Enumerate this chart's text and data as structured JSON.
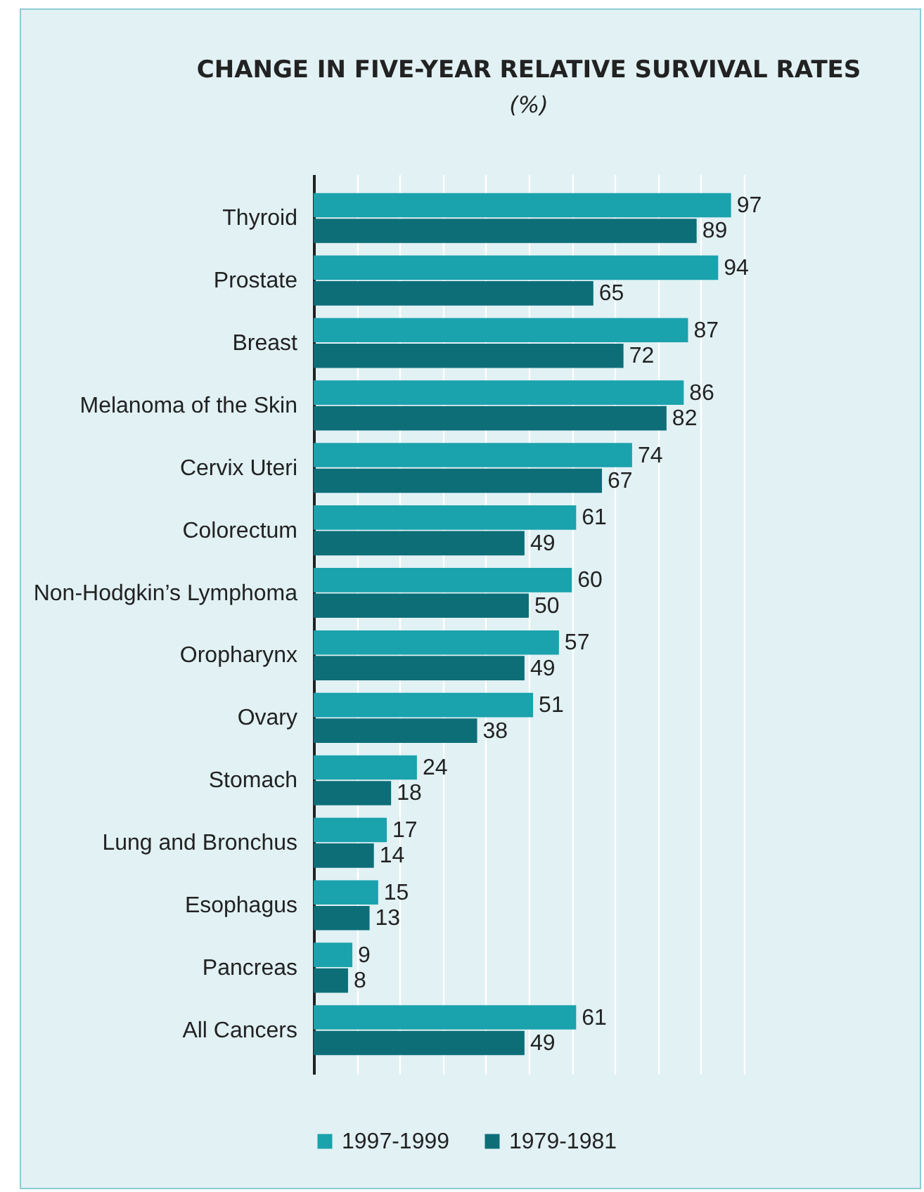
{
  "chart_data": {
    "type": "bar",
    "orientation": "horizontal",
    "title": "CHANGE IN FIVE-YEAR RELATIVE SURVIVAL RATES",
    "subtitle": "(%)",
    "categories": [
      "Thyroid",
      "Prostate",
      "Breast",
      "Melanoma of the Skin",
      "Cervix Uteri",
      "Colorectum",
      "Non-Hodgkin’s Lymphoma",
      "Oropharynx",
      "Ovary",
      "Stomach",
      "Lung and Bronchus",
      "Esophagus",
      "Pancreas",
      "All Cancers"
    ],
    "series": [
      {
        "name": "1997-1999",
        "color": "#1aa2ad",
        "values": [
          97,
          94,
          87,
          86,
          74,
          61,
          60,
          57,
          51,
          24,
          17,
          15,
          9,
          61
        ]
      },
      {
        "name": "1979-1981",
        "color": "#0d6e78",
        "values": [
          89,
          65,
          72,
          82,
          67,
          49,
          50,
          49,
          38,
          18,
          14,
          13,
          8,
          49
        ]
      }
    ],
    "xlim": [
      0,
      100
    ],
    "xticks": [
      {
        "value": 0,
        "label": null
      },
      {
        "value": 10,
        "label": null
      },
      {
        "value": 20,
        "label": null
      },
      {
        "value": 30,
        "label": null
      },
      {
        "value": 40,
        "label": null
      },
      {
        "value": 50,
        "label": null
      },
      {
        "value": 60,
        "label": null
      },
      {
        "value": 70,
        "label": null
      },
      {
        "value": 80,
        "label": null
      },
      {
        "value": 90,
        "label": null
      },
      {
        "value": 100,
        "label": null
      }
    ],
    "grid": "x",
    "legend": "bottom",
    "tick_labels": "y",
    "data_labels": true
  }
}
